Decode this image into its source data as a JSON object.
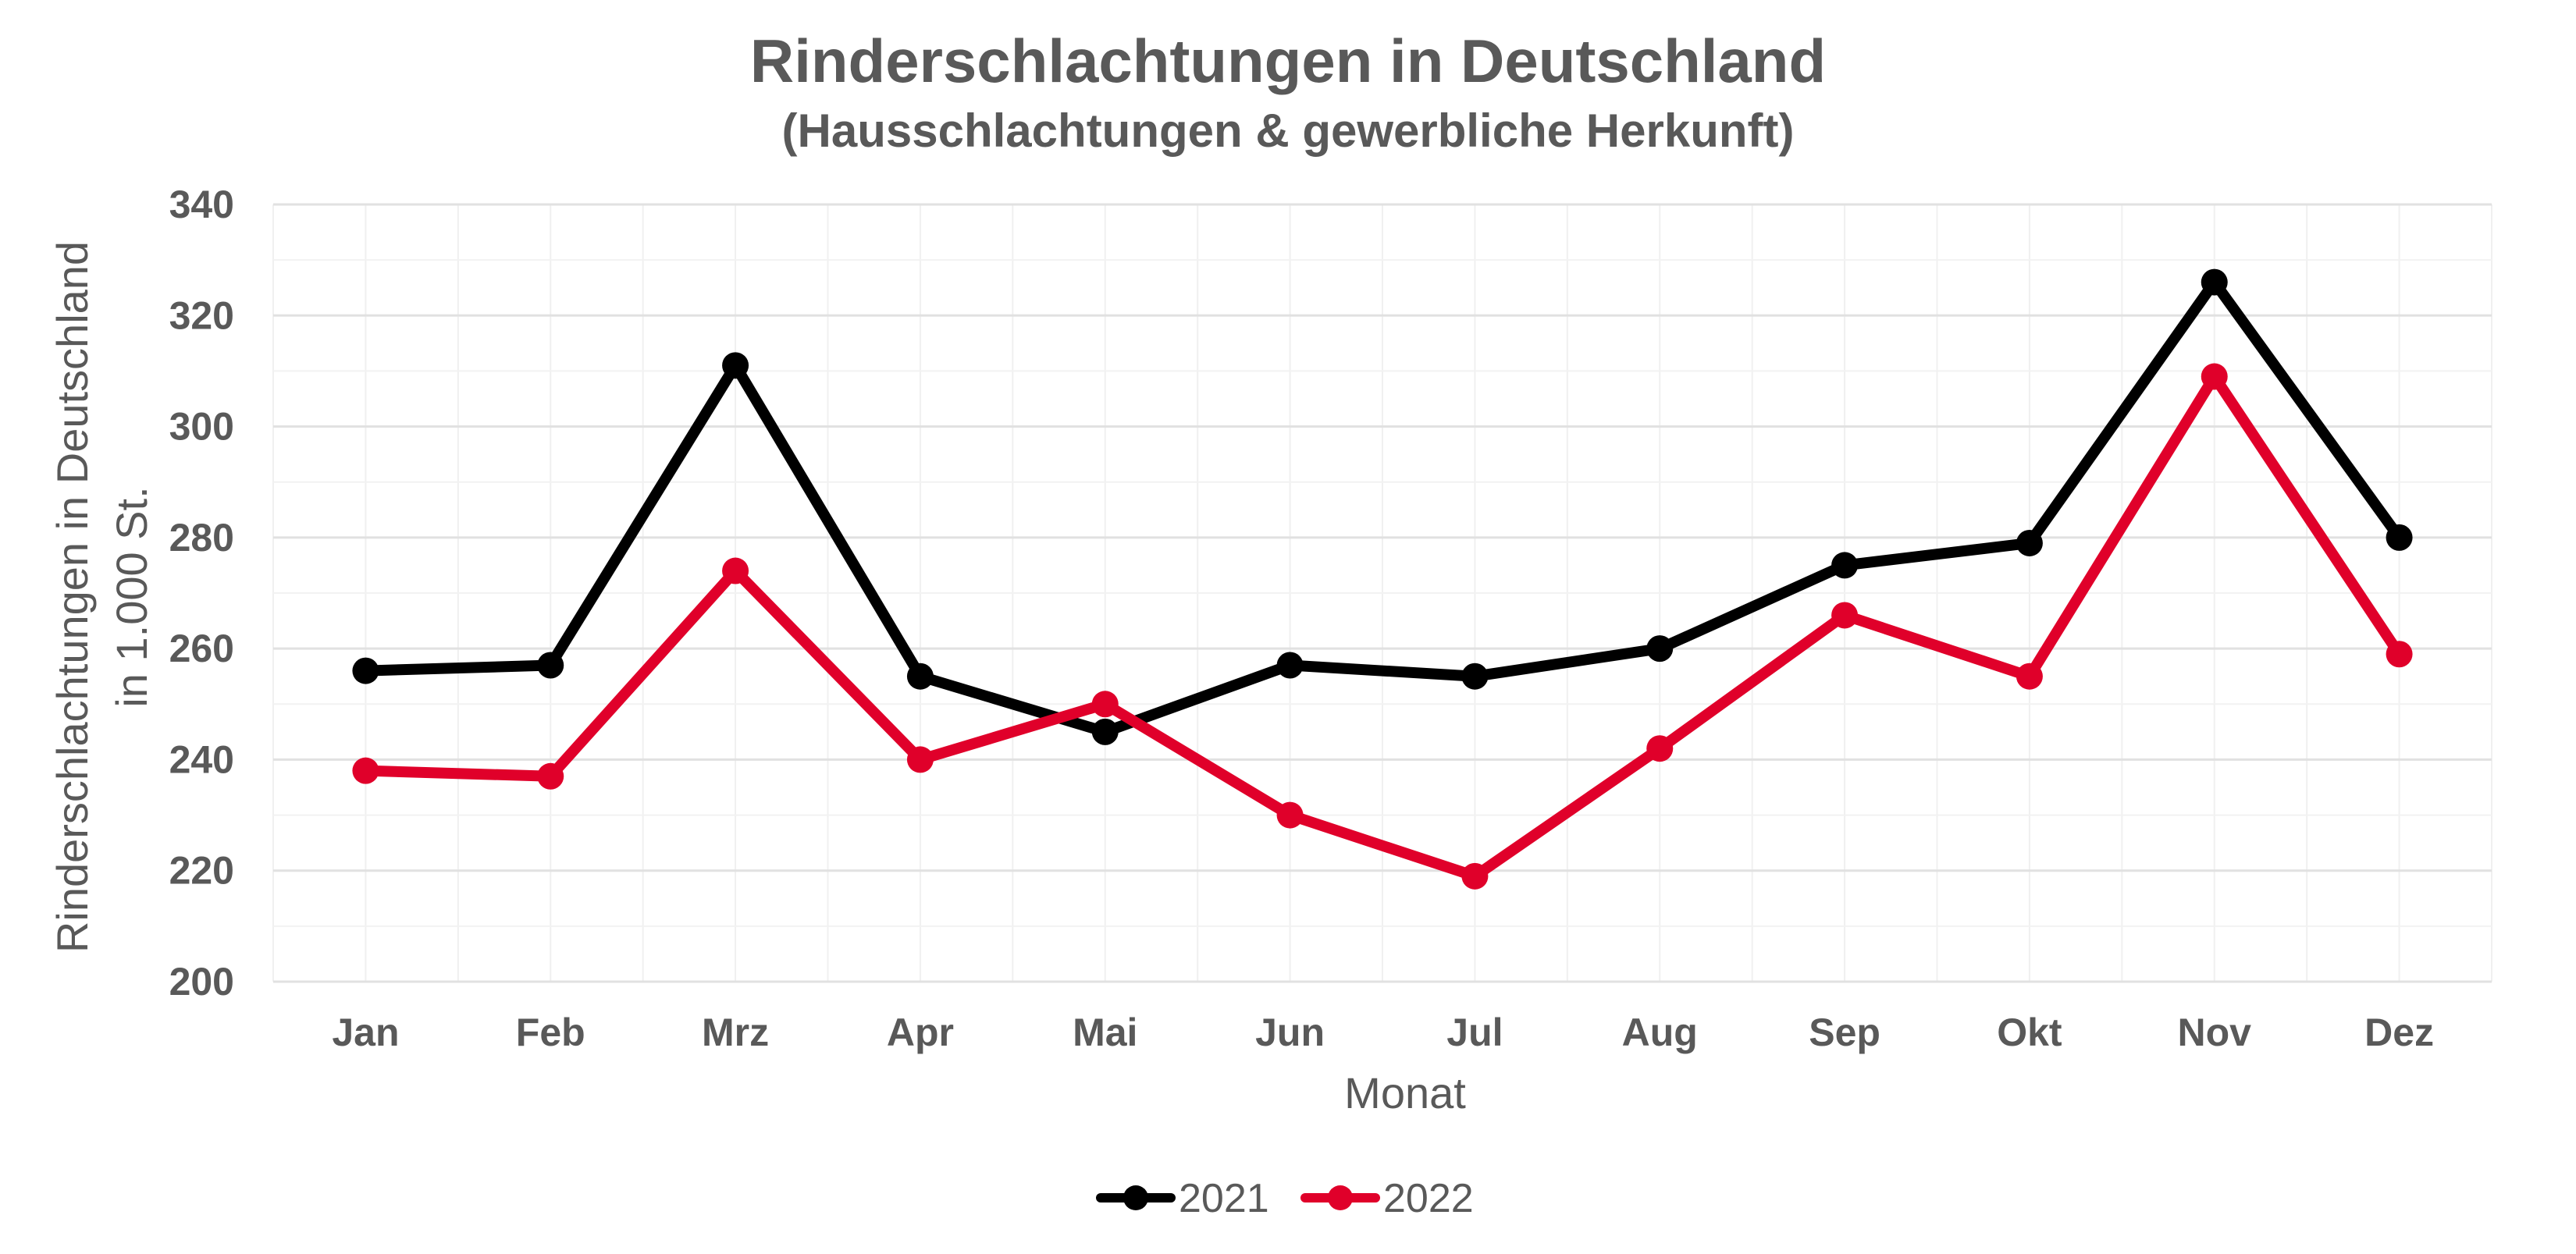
{
  "chart_data": {
    "type": "line",
    "title": "Rinderschlachtungen in Deutschland",
    "subtitle": "(Hausschlachtungen & gewerbliche Herkunft)",
    "xlabel": "Monat",
    "ylabel": [
      "Rinderschlachtungen in Deutschland",
      "in 1.000 St."
    ],
    "categories": [
      "Jan",
      "Feb",
      "Mrz",
      "Apr",
      "Mai",
      "Jun",
      "Jul",
      "Aug",
      "Sep",
      "Okt",
      "Nov",
      "Dez"
    ],
    "ylim": [
      200,
      340
    ],
    "yticks": [
      "200",
      "220",
      "240",
      "260",
      "280",
      "300",
      "320",
      "340"
    ],
    "grid": true,
    "legend_position": "bottom-center",
    "series": [
      {
        "name": "2021",
        "color": "#000000",
        "values": [
          256,
          257,
          311,
          255,
          245,
          257,
          255,
          260,
          275,
          279,
          326,
          280
        ]
      },
      {
        "name": "2022",
        "color": "#E0002A",
        "values": [
          238,
          237,
          274,
          240,
          250,
          230,
          219,
          242,
          266,
          255,
          309,
          259
        ]
      }
    ]
  }
}
